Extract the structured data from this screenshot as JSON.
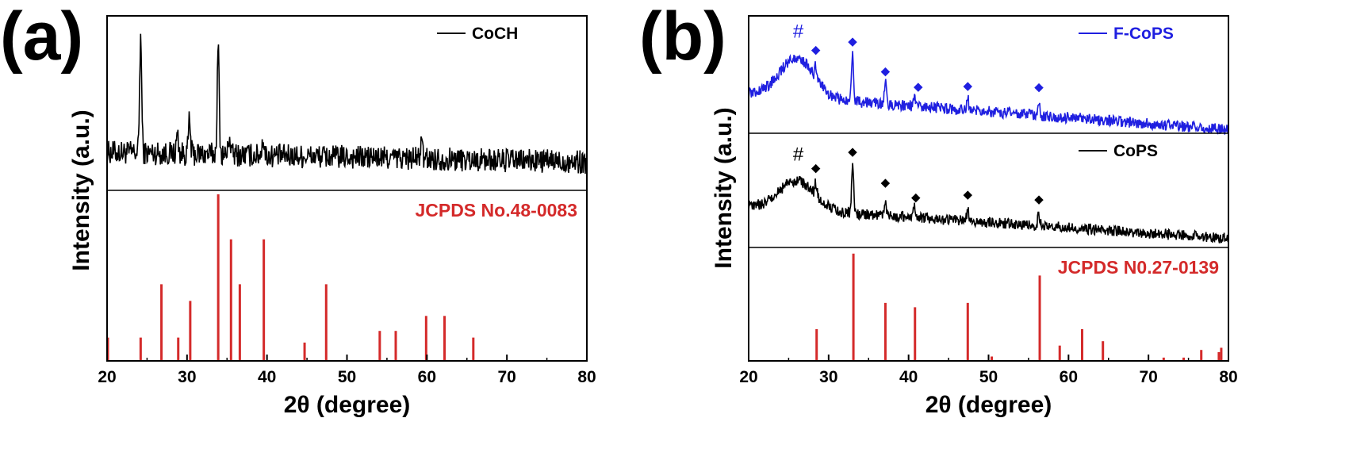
{
  "colors": {
    "black": "#000000",
    "blue": "#1f1fe0",
    "red": "#d42a2a"
  },
  "chart_data": [
    {
      "panel_label": "(a)",
      "type": "line",
      "xlabel": "2θ (degree)",
      "ylabel": "Intensity (a.u.)",
      "xlim": [
        20,
        80
      ],
      "x_ticks": [
        20,
        30,
        40,
        50,
        60,
        70,
        80
      ],
      "x_tick_labels": [
        "20",
        "30",
        "40",
        "50",
        "60",
        "70",
        "80"
      ],
      "grid": false,
      "series": [
        {
          "name": "CoCH",
          "color": "#000000",
          "baseline": 0.35,
          "slope": -0.09,
          "noise": 0.11,
          "ylim": [
            0,
            1.6
          ],
          "peaks": [
            {
              "x": 24.2,
              "h": 1.05
            },
            {
              "x": 28.8,
              "h": 0.18
            },
            {
              "x": 30.3,
              "h": 0.3
            },
            {
              "x": 33.9,
              "h": 0.95
            },
            {
              "x": 35.3,
              "h": 0.17
            },
            {
              "x": 39.5,
              "h": 0.16
            },
            {
              "x": 59.3,
              "h": 0.14
            }
          ]
        }
      ],
      "reference": {
        "name": "JCPDS No.48-0083",
        "color": "#d42a2a",
        "ylim": [
          0,
          1.0
        ],
        "peaks": [
          {
            "x": 20.1,
            "h": 0.14
          },
          {
            "x": 24.2,
            "h": 0.14
          },
          {
            "x": 26.8,
            "h": 0.46
          },
          {
            "x": 28.9,
            "h": 0.14
          },
          {
            "x": 30.4,
            "h": 0.36
          },
          {
            "x": 33.9,
            "h": 1.0
          },
          {
            "x": 35.5,
            "h": 0.73
          },
          {
            "x": 36.6,
            "h": 0.46
          },
          {
            "x": 39.6,
            "h": 0.73
          },
          {
            "x": 44.7,
            "h": 0.11
          },
          {
            "x": 47.4,
            "h": 0.46
          },
          {
            "x": 54.1,
            "h": 0.18
          },
          {
            "x": 56.1,
            "h": 0.18
          },
          {
            "x": 59.9,
            "h": 0.27
          },
          {
            "x": 62.2,
            "h": 0.27
          },
          {
            "x": 65.8,
            "h": 0.14
          }
        ]
      }
    },
    {
      "panel_label": "(b)",
      "type": "line",
      "xlabel": "2θ (degree)",
      "ylabel": "Intensity (a.u.)",
      "xlim": [
        20,
        80
      ],
      "x_ticks": [
        20,
        30,
        40,
        50,
        60,
        70,
        80
      ],
      "x_tick_labels": [
        "20",
        "30",
        "40",
        "50",
        "60",
        "70",
        "80"
      ],
      "grid": false,
      "series": [
        {
          "name": "F-CoPS",
          "color": "#1f1fe0",
          "baseline": 0.42,
          "slope": -0.38,
          "noise": 0.06,
          "ylim": [
            0,
            1.25
          ],
          "hump": {
            "x": 26.0,
            "h": 0.42,
            "w": 3.0
          },
          "peaks": [
            {
              "x": 28.4,
              "h": 0.14
            },
            {
              "x": 33.0,
              "h": 0.52
            },
            {
              "x": 37.1,
              "h": 0.23
            },
            {
              "x": 40.7,
              "h": 0.09
            },
            {
              "x": 47.4,
              "h": 0.12
            },
            {
              "x": 56.3,
              "h": 0.12
            }
          ],
          "annotations": [
            {
              "x": 26.2,
              "text": "#",
              "dy": 0.22
            },
            {
              "x": 28.4,
              "text": "◆",
              "dy": 0.12
            },
            {
              "x": 33.0,
              "text": "◆",
              "dy": 0.08
            },
            {
              "x": 37.1,
              "text": "◆",
              "dy": 0.08
            },
            {
              "x": 41.2,
              "text": "◆",
              "dy": 0.17
            },
            {
              "x": 47.4,
              "text": "◆",
              "dy": 0.1
            },
            {
              "x": 56.3,
              "text": "◆",
              "dy": 0.14
            }
          ]
        },
        {
          "name": "CoPS",
          "color": "#000000",
          "baseline": 0.45,
          "slope": -0.35,
          "noise": 0.06,
          "ylim": [
            0,
            1.25
          ],
          "hump": {
            "x": 26.0,
            "h": 0.32,
            "w": 3.0
          },
          "peaks": [
            {
              "x": 28.4,
              "h": 0.14
            },
            {
              "x": 33.0,
              "h": 0.55
            },
            {
              "x": 37.1,
              "h": 0.18
            },
            {
              "x": 40.7,
              "h": 0.13
            },
            {
              "x": 47.4,
              "h": 0.13
            },
            {
              "x": 56.3,
              "h": 0.13
            }
          ],
          "annotations": [
            {
              "x": 26.2,
              "text": "#",
              "dy": 0.22
            },
            {
              "x": 28.4,
              "text": "◆",
              "dy": 0.12
            },
            {
              "x": 33.0,
              "text": "◆",
              "dy": 0.08
            },
            {
              "x": 37.1,
              "text": "◆",
              "dy": 0.14
            },
            {
              "x": 40.9,
              "text": "◆",
              "dy": 0.14
            },
            {
              "x": 47.4,
              "text": "◆",
              "dy": 0.12
            },
            {
              "x": 56.3,
              "text": "◆",
              "dy": 0.12
            }
          ]
        }
      ],
      "reference": {
        "name": "JCPDS N0.27-0139",
        "color": "#d42a2a",
        "ylim": [
          0,
          1.0
        ],
        "peaks": [
          {
            "x": 28.5,
            "h": 0.29
          },
          {
            "x": 33.1,
            "h": 0.98
          },
          {
            "x": 37.1,
            "h": 0.53
          },
          {
            "x": 40.8,
            "h": 0.49
          },
          {
            "x": 47.4,
            "h": 0.53
          },
          {
            "x": 50.4,
            "h": 0.04
          },
          {
            "x": 56.4,
            "h": 0.78
          },
          {
            "x": 58.9,
            "h": 0.14
          },
          {
            "x": 61.7,
            "h": 0.29
          },
          {
            "x": 64.3,
            "h": 0.18
          },
          {
            "x": 71.9,
            "h": 0.03
          },
          {
            "x": 74.4,
            "h": 0.03
          },
          {
            "x": 76.6,
            "h": 0.1
          },
          {
            "x": 78.8,
            "h": 0.08
          },
          {
            "x": 79.1,
            "h": 0.12
          }
        ]
      }
    }
  ]
}
